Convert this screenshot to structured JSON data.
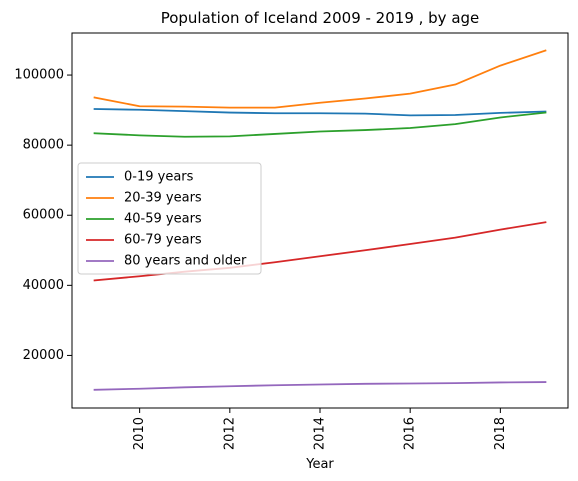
{
  "chart_data": {
    "type": "line",
    "title": "Population of Iceland 2009 - 2019 , by age",
    "xlabel": "Year",
    "ylabel": "",
    "x": [
      2009,
      2010,
      2011,
      2012,
      2013,
      2014,
      2015,
      2016,
      2017,
      2018,
      2019
    ],
    "xlim": [
      2008.5,
      2019.5
    ],
    "ylim": [
      5000,
      112000
    ],
    "xticks": [
      2010,
      2012,
      2014,
      2016,
      2018
    ],
    "xtick_labels": [
      "2010",
      "2012",
      "2014",
      "2016",
      "2018"
    ],
    "yticks": [
      20000,
      40000,
      60000,
      80000,
      100000
    ],
    "ytick_labels": [
      "20000",
      "40000",
      "60000",
      "80000",
      "100000"
    ],
    "grid": false,
    "legend_position": "center-left",
    "series": [
      {
        "name": "0-19 years",
        "color": "#1f77b4",
        "values": [
          90300,
          90100,
          89700,
          89300,
          89100,
          89100,
          89000,
          88500,
          88600,
          89200,
          89600
        ]
      },
      {
        "name": "20-39 years",
        "color": "#ff7f0e",
        "values": [
          93600,
          91100,
          91000,
          90700,
          90700,
          92100,
          93300,
          94700,
          97300,
          102700,
          107000
        ]
      },
      {
        "name": "40-59 years",
        "color": "#2ca02c",
        "values": [
          83400,
          82800,
          82400,
          82500,
          83200,
          83900,
          84300,
          84900,
          86000,
          87900,
          89300
        ]
      },
      {
        "name": "60-79 years",
        "color": "#d62728",
        "values": [
          41400,
          42600,
          43900,
          45000,
          46600,
          48300,
          50000,
          51800,
          53600,
          55900,
          58000
        ]
      },
      {
        "name": "80 years and older",
        "color": "#9467bd",
        "values": [
          10200,
          10500,
          10900,
          11200,
          11500,
          11700,
          11900,
          12000,
          12100,
          12300,
          12400
        ]
      }
    ]
  }
}
